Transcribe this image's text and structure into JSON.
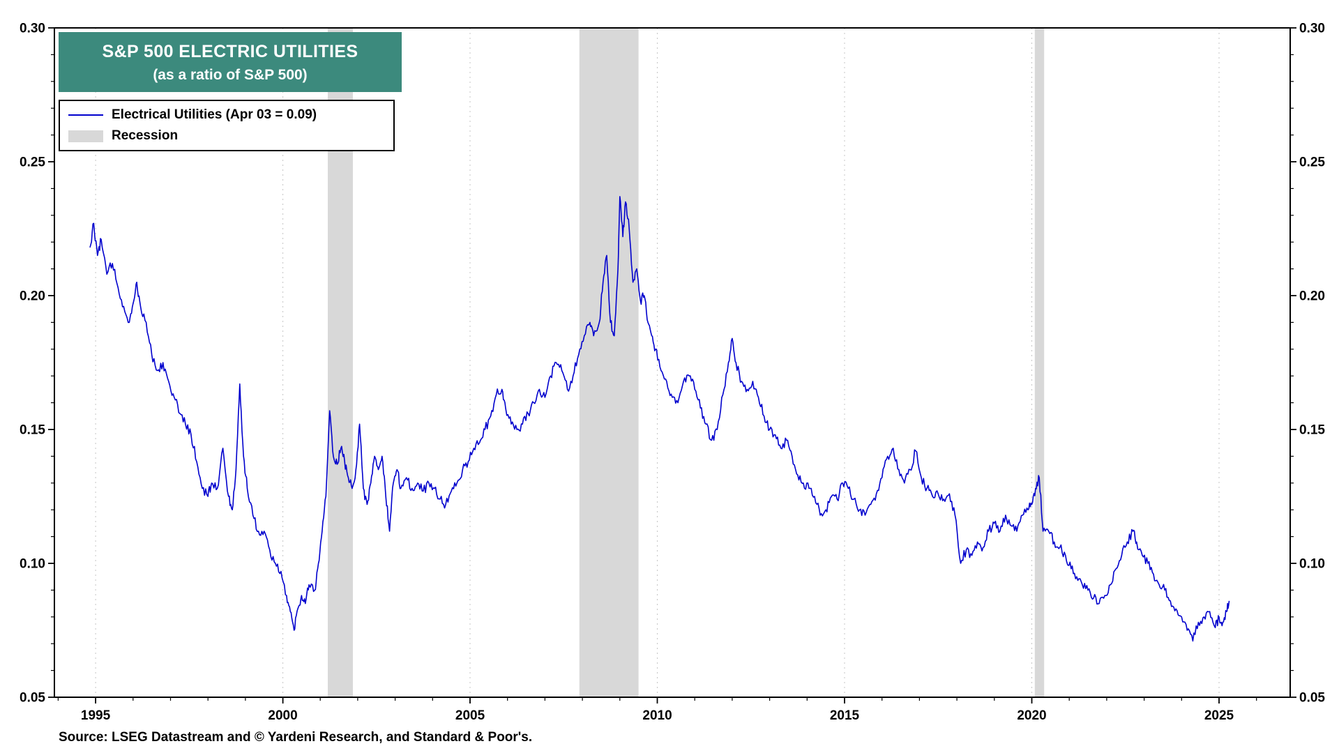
{
  "page": {
    "background": "#ffffff"
  },
  "title_box": {
    "line1": "S&P 500 ELECTRIC UTILITIES",
    "line2": "(as a ratio of S&P 500)",
    "bg_color": "#3c8a7d",
    "text_color": "#ffffff"
  },
  "legend": {
    "series_label": "Electrical Utilities (Apr 03 = 0.09)",
    "series_color": "#0000cd",
    "recession_label": "Recession",
    "recession_color": "#d8d8d8"
  },
  "source": "Source: LSEG Datastream and © Yardeni Research, and Standard & Poor's.",
  "chart_data": {
    "type": "line",
    "title": "S&P 500 ELECTRIC UTILITIES",
    "subtitle": "(as a ratio of S&P 500)",
    "xlabel": "",
    "ylabel": "",
    "x_range": [
      1993.9,
      2026.9
    ],
    "y_range": [
      0.05,
      0.3
    ],
    "x_ticks_major": [
      1995,
      2000,
      2005,
      2010,
      2015,
      2020,
      2025
    ],
    "x_minor_step_years": 1,
    "y_ticks_major": [
      0.05,
      0.1,
      0.15,
      0.2,
      0.25,
      0.3
    ],
    "y_minor_step": 0.01,
    "grid": "vertical dotted lines at major x ticks",
    "legend_position": "top-left",
    "axis_label_format": "2 decimals, labels on both left and right axes",
    "recessions": [
      [
        2001.2,
        2001.87
      ],
      [
        2007.92,
        2009.5
      ],
      [
        2020.08,
        2020.33
      ]
    ],
    "series": [
      {
        "name": "Electrical Utilities (Apr 03 = 0.09)",
        "color": "#0000cd",
        "points": [
          [
            1994.85,
            0.218
          ],
          [
            1994.95,
            0.227
          ],
          [
            1995.05,
            0.215
          ],
          [
            1995.15,
            0.221
          ],
          [
            1995.3,
            0.208
          ],
          [
            1995.45,
            0.212
          ],
          [
            1995.6,
            0.203
          ],
          [
            1995.75,
            0.196
          ],
          [
            1995.9,
            0.19
          ],
          [
            1996.0,
            0.197
          ],
          [
            1996.1,
            0.205
          ],
          [
            1996.2,
            0.196
          ],
          [
            1996.35,
            0.19
          ],
          [
            1996.5,
            0.178
          ],
          [
            1996.65,
            0.172
          ],
          [
            1996.8,
            0.175
          ],
          [
            1996.95,
            0.168
          ],
          [
            1997.1,
            0.162
          ],
          [
            1997.25,
            0.156
          ],
          [
            1997.4,
            0.152
          ],
          [
            1997.55,
            0.148
          ],
          [
            1997.7,
            0.138
          ],
          [
            1997.85,
            0.128
          ],
          [
            1998.0,
            0.125
          ],
          [
            1998.1,
            0.13
          ],
          [
            1998.25,
            0.128
          ],
          [
            1998.4,
            0.143
          ],
          [
            1998.55,
            0.125
          ],
          [
            1998.65,
            0.12
          ],
          [
            1998.75,
            0.135
          ],
          [
            1998.85,
            0.167
          ],
          [
            1998.95,
            0.14
          ],
          [
            1999.05,
            0.128
          ],
          [
            1999.2,
            0.118
          ],
          [
            1999.35,
            0.112
          ],
          [
            1999.5,
            0.112
          ],
          [
            1999.65,
            0.105
          ],
          [
            1999.8,
            0.1
          ],
          [
            1999.95,
            0.097
          ],
          [
            2000.1,
            0.088
          ],
          [
            2000.2,
            0.082
          ],
          [
            2000.3,
            0.075
          ],
          [
            2000.4,
            0.083
          ],
          [
            2000.5,
            0.088
          ],
          [
            2000.6,
            0.085
          ],
          [
            2000.7,
            0.092
          ],
          [
            2000.85,
            0.09
          ],
          [
            2000.95,
            0.1
          ],
          [
            2001.05,
            0.112
          ],
          [
            2001.15,
            0.125
          ],
          [
            2001.25,
            0.157
          ],
          [
            2001.35,
            0.14
          ],
          [
            2001.45,
            0.137
          ],
          [
            2001.55,
            0.143
          ],
          [
            2001.65,
            0.138
          ],
          [
            2001.75,
            0.132
          ],
          [
            2001.85,
            0.128
          ],
          [
            2001.95,
            0.135
          ],
          [
            2002.05,
            0.152
          ],
          [
            2002.15,
            0.128
          ],
          [
            2002.25,
            0.122
          ],
          [
            2002.35,
            0.13
          ],
          [
            2002.45,
            0.14
          ],
          [
            2002.55,
            0.135
          ],
          [
            2002.65,
            0.14
          ],
          [
            2002.75,
            0.125
          ],
          [
            2002.85,
            0.112
          ],
          [
            2002.95,
            0.13
          ],
          [
            2003.05,
            0.135
          ],
          [
            2003.15,
            0.128
          ],
          [
            2003.3,
            0.132
          ],
          [
            2003.45,
            0.128
          ],
          [
            2003.6,
            0.13
          ],
          [
            2003.75,
            0.127
          ],
          [
            2003.9,
            0.13
          ],
          [
            2004.05,
            0.128
          ],
          [
            2004.2,
            0.124
          ],
          [
            2004.35,
            0.122
          ],
          [
            2004.5,
            0.127
          ],
          [
            2004.65,
            0.13
          ],
          [
            2004.8,
            0.135
          ],
          [
            2004.95,
            0.138
          ],
          [
            2005.1,
            0.143
          ],
          [
            2005.25,
            0.145
          ],
          [
            2005.4,
            0.15
          ],
          [
            2005.55,
            0.155
          ],
          [
            2005.7,
            0.163
          ],
          [
            2005.85,
            0.165
          ],
          [
            2005.95,
            0.158
          ],
          [
            2006.1,
            0.152
          ],
          [
            2006.25,
            0.15
          ],
          [
            2006.4,
            0.152
          ],
          [
            2006.55,
            0.156
          ],
          [
            2006.7,
            0.16
          ],
          [
            2006.85,
            0.165
          ],
          [
            2007.0,
            0.162
          ],
          [
            2007.15,
            0.17
          ],
          [
            2007.3,
            0.175
          ],
          [
            2007.45,
            0.172
          ],
          [
            2007.6,
            0.165
          ],
          [
            2007.75,
            0.17
          ],
          [
            2007.9,
            0.178
          ],
          [
            2008.05,
            0.185
          ],
          [
            2008.2,
            0.19
          ],
          [
            2008.3,
            0.185
          ],
          [
            2008.45,
            0.19
          ],
          [
            2008.55,
            0.205
          ],
          [
            2008.65,
            0.215
          ],
          [
            2008.75,
            0.19
          ],
          [
            2008.85,
            0.185
          ],
          [
            2008.95,
            0.21
          ],
          [
            2009.0,
            0.237
          ],
          [
            2009.08,
            0.222
          ],
          [
            2009.15,
            0.235
          ],
          [
            2009.25,
            0.225
          ],
          [
            2009.35,
            0.205
          ],
          [
            2009.45,
            0.21
          ],
          [
            2009.55,
            0.198
          ],
          [
            2009.65,
            0.2
          ],
          [
            2009.75,
            0.19
          ],
          [
            2009.85,
            0.185
          ],
          [
            2009.95,
            0.18
          ],
          [
            2010.1,
            0.172
          ],
          [
            2010.25,
            0.168
          ],
          [
            2010.4,
            0.162
          ],
          [
            2010.55,
            0.16
          ],
          [
            2010.7,
            0.168
          ],
          [
            2010.85,
            0.17
          ],
          [
            2011.0,
            0.165
          ],
          [
            2011.15,
            0.158
          ],
          [
            2011.3,
            0.152
          ],
          [
            2011.45,
            0.146
          ],
          [
            2011.6,
            0.15
          ],
          [
            2011.75,
            0.163
          ],
          [
            2011.9,
            0.175
          ],
          [
            2012.0,
            0.184
          ],
          [
            2012.1,
            0.175
          ],
          [
            2012.25,
            0.168
          ],
          [
            2012.4,
            0.165
          ],
          [
            2012.55,
            0.168
          ],
          [
            2012.7,
            0.162
          ],
          [
            2012.85,
            0.155
          ],
          [
            2013.0,
            0.15
          ],
          [
            2013.15,
            0.148
          ],
          [
            2013.3,
            0.143
          ],
          [
            2013.45,
            0.146
          ],
          [
            2013.6,
            0.14
          ],
          [
            2013.75,
            0.133
          ],
          [
            2013.9,
            0.13
          ],
          [
            2014.05,
            0.128
          ],
          [
            2014.2,
            0.125
          ],
          [
            2014.35,
            0.118
          ],
          [
            2014.5,
            0.12
          ],
          [
            2014.65,
            0.125
          ],
          [
            2014.8,
            0.124
          ],
          [
            2014.95,
            0.13
          ],
          [
            2015.1,
            0.128
          ],
          [
            2015.25,
            0.124
          ],
          [
            2015.4,
            0.12
          ],
          [
            2015.55,
            0.118
          ],
          [
            2015.7,
            0.122
          ],
          [
            2015.85,
            0.126
          ],
          [
            2016.0,
            0.132
          ],
          [
            2016.15,
            0.14
          ],
          [
            2016.3,
            0.143
          ],
          [
            2016.45,
            0.135
          ],
          [
            2016.6,
            0.13
          ],
          [
            2016.75,
            0.135
          ],
          [
            2016.9,
            0.142
          ],
          [
            2017.05,
            0.132
          ],
          [
            2017.2,
            0.128
          ],
          [
            2017.35,
            0.125
          ],
          [
            2017.5,
            0.126
          ],
          [
            2017.65,
            0.124
          ],
          [
            2017.8,
            0.126
          ],
          [
            2017.95,
            0.118
          ],
          [
            2018.1,
            0.1
          ],
          [
            2018.25,
            0.105
          ],
          [
            2018.4,
            0.103
          ],
          [
            2018.55,
            0.108
          ],
          [
            2018.7,
            0.106
          ],
          [
            2018.85,
            0.112
          ],
          [
            2019.0,
            0.115
          ],
          [
            2019.15,
            0.112
          ],
          [
            2019.3,
            0.118
          ],
          [
            2019.45,
            0.114
          ],
          [
            2019.6,
            0.112
          ],
          [
            2019.75,
            0.118
          ],
          [
            2019.9,
            0.12
          ],
          [
            2020.0,
            0.122
          ],
          [
            2020.1,
            0.128
          ],
          [
            2020.2,
            0.132
          ],
          [
            2020.3,
            0.112
          ],
          [
            2020.45,
            0.112
          ],
          [
            2020.6,
            0.108
          ],
          [
            2020.75,
            0.106
          ],
          [
            2020.9,
            0.103
          ],
          [
            2021.05,
            0.098
          ],
          [
            2021.2,
            0.095
          ],
          [
            2021.35,
            0.092
          ],
          [
            2021.5,
            0.09
          ],
          [
            2021.65,
            0.087
          ],
          [
            2021.8,
            0.085
          ],
          [
            2021.95,
            0.088
          ],
          [
            2022.1,
            0.092
          ],
          [
            2022.25,
            0.098
          ],
          [
            2022.4,
            0.103
          ],
          [
            2022.55,
            0.108
          ],
          [
            2022.7,
            0.112
          ],
          [
            2022.8,
            0.108
          ],
          [
            2022.95,
            0.103
          ],
          [
            2023.1,
            0.1
          ],
          [
            2023.25,
            0.096
          ],
          [
            2023.4,
            0.092
          ],
          [
            2023.55,
            0.09
          ],
          [
            2023.7,
            0.086
          ],
          [
            2023.85,
            0.083
          ],
          [
            2024.0,
            0.08
          ],
          [
            2024.15,
            0.075
          ],
          [
            2024.3,
            0.071
          ],
          [
            2024.45,
            0.078
          ],
          [
            2024.6,
            0.08
          ],
          [
            2024.75,
            0.082
          ],
          [
            2024.9,
            0.076
          ],
          [
            2025.0,
            0.08
          ],
          [
            2025.1,
            0.078
          ],
          [
            2025.2,
            0.082
          ],
          [
            2025.27,
            0.086
          ]
        ]
      }
    ],
    "render_hints": {
      "grid_color": "#c4c4c4",
      "frame_color": "#000000",
      "noise_amplitude": 0.0018,
      "noise_subdivisions": 5,
      "noise_seed": 12
    }
  }
}
